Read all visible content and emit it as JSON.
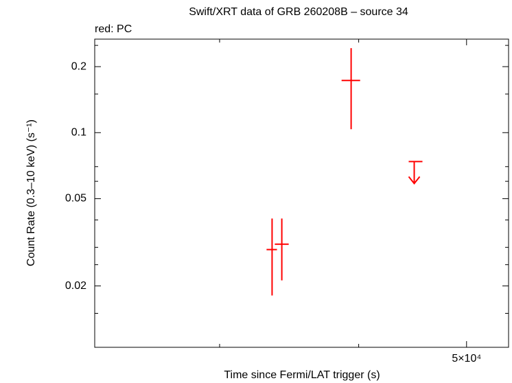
{
  "chart_data": {
    "type": "scatter",
    "title": "Swift/XRT data of GRB 260208B – source 34",
    "subtitle": "red: PC",
    "x_label": "Time since Fermi/LAT trigger (s)",
    "y_label": "Count Rate (0.3–10 keV) (s⁻¹)",
    "xlog": true,
    "ylog": true,
    "xlim": [
      23170,
      54540
    ],
    "ylim": [
      0.0105,
      0.267
    ],
    "xticks": [
      {
        "value": 50000,
        "label": "5×10⁴"
      }
    ],
    "xminor_ticks": [
      30000,
      40000
    ],
    "yticks": [
      0.02,
      0.05,
      0.1,
      0.2
    ],
    "yminor_ticks": [
      0.015,
      0.025,
      0.03,
      0.04,
      0.06,
      0.07,
      0.15,
      0.25
    ],
    "series": [
      {
        "color": "#ff0000",
        "x": [
          33440,
          34120,
          39380
        ],
        "x_low": [
          33060,
          33630,
          38610
        ],
        "x_high": [
          33780,
          34610,
          40120
        ],
        "y": [
          0.0293,
          0.031,
          0.173
        ],
        "y_low": [
          0.0181,
          0.0212,
          0.1037
        ],
        "y_high": [
          0.0406,
          0.0406,
          0.243
        ]
      }
    ],
    "upper_limits": [
      {
        "color": "#ff0000",
        "x": [
          44870
        ],
        "x_low": [
          44360
        ],
        "x_high": [
          45640
        ],
        "y": [
          0.0738
        ]
      }
    ]
  }
}
